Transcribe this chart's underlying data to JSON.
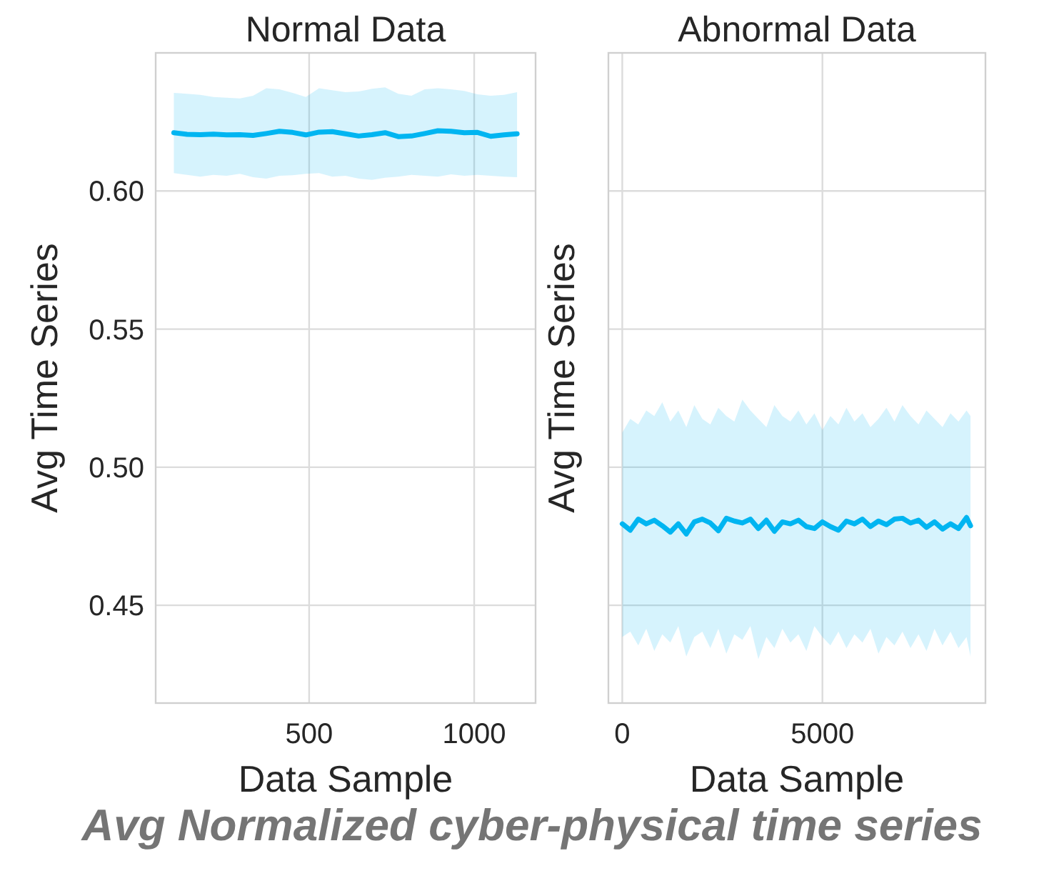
{
  "chart_data": [
    {
      "type": "line",
      "title": "Normal Data",
      "xlabel": "Data Sample",
      "ylabel": "Avg Time Series",
      "xlim": [
        35,
        1186
      ],
      "xticks": [
        500,
        1000
      ],
      "ylim": [
        0.4146,
        0.65
      ],
      "yticks": [
        0.45,
        {
          "value": 0.5,
          "label": "0.50"
        },
        0.55,
        {
          "value": 0.6,
          "label": "0.60"
        }
      ],
      "grid": true,
      "line_style": "solid",
      "annotations": [
        "Avg Normalized cyber-physical time series"
      ],
      "x": [
        90,
        130,
        170,
        210,
        250,
        290,
        330,
        370,
        410,
        450,
        490,
        530,
        570,
        610,
        650,
        690,
        730,
        770,
        810,
        850,
        890,
        930,
        970,
        1010,
        1050,
        1090,
        1130
      ],
      "series": [
        {
          "color": "#00b5f1",
          "values": [
            0.6211,
            0.6205,
            0.6204,
            0.6206,
            0.6203,
            0.6204,
            0.6201,
            0.6208,
            0.6216,
            0.6212,
            0.6203,
            0.6213,
            0.6215,
            0.6207,
            0.6199,
            0.6204,
            0.6211,
            0.6197,
            0.6199,
            0.6208,
            0.6218,
            0.6216,
            0.6211,
            0.6212,
            0.6198,
            0.6203,
            0.6207
          ],
          "lower": [
            0.6065,
            0.6058,
            0.6052,
            0.6058,
            0.6055,
            0.6062,
            0.605,
            0.6045,
            0.6055,
            0.6057,
            0.6062,
            0.6065,
            0.6052,
            0.6055,
            0.6045,
            0.604,
            0.6048,
            0.6052,
            0.6058,
            0.6055,
            0.6052,
            0.606,
            0.6055,
            0.6058,
            0.6055,
            0.6052,
            0.605
          ],
          "upper": [
            0.6355,
            0.6352,
            0.6348,
            0.634,
            0.6338,
            0.6335,
            0.6345,
            0.6372,
            0.6368,
            0.6355,
            0.634,
            0.6372,
            0.6365,
            0.6358,
            0.636,
            0.637,
            0.6375,
            0.6352,
            0.6345,
            0.6368,
            0.6372,
            0.6368,
            0.6362,
            0.635,
            0.6345,
            0.6348,
            0.6358
          ]
        }
      ]
    },
    {
      "type": "line",
      "title": "Abnormal Data",
      "xlabel": "Data Sample",
      "ylabel": "Avg Time Series",
      "xlim": [
        -346,
        9073
      ],
      "xticks": [
        0,
        5000
      ],
      "ylim": [
        0.4146,
        0.65
      ],
      "yticks": [
        0.45,
        0.5,
        0.55,
        0.6
      ],
      "tick_labels": "x",
      "grid": true,
      "line_style": "solid",
      "x": [
        0,
        200,
        400,
        600,
        800,
        1000,
        1200,
        1400,
        1600,
        1800,
        2000,
        2200,
        2400,
        2600,
        2800,
        3000,
        3200,
        3400,
        3600,
        3800,
        4000,
        4200,
        4400,
        4600,
        4800,
        5000,
        5200,
        5400,
        5600,
        5800,
        6000,
        6200,
        6400,
        6600,
        6800,
        7000,
        7200,
        7400,
        7600,
        7800,
        8000,
        8200,
        8400,
        8600,
        8700
      ],
      "series": [
        {
          "color": "#00b5f1",
          "values": [
            0.4795,
            0.4772,
            0.4812,
            0.4795,
            0.4808,
            0.4788,
            0.4765,
            0.4795,
            0.4758,
            0.4802,
            0.4812,
            0.4798,
            0.477,
            0.4815,
            0.4805,
            0.4798,
            0.4812,
            0.4778,
            0.4808,
            0.4768,
            0.4802,
            0.4795,
            0.4808,
            0.4785,
            0.4778,
            0.4802,
            0.4785,
            0.4772,
            0.4805,
            0.4795,
            0.4812,
            0.4785,
            0.4805,
            0.4792,
            0.4812,
            0.4815,
            0.4798,
            0.4808,
            0.4782,
            0.4802,
            0.4776,
            0.4795,
            0.4778,
            0.4818,
            0.4788
          ],
          "lower": [
            0.4385,
            0.4405,
            0.4355,
            0.4415,
            0.4335,
            0.4395,
            0.4365,
            0.4425,
            0.4315,
            0.4385,
            0.4405,
            0.4345,
            0.4415,
            0.4325,
            0.4395,
            0.4375,
            0.4425,
            0.4305,
            0.4385,
            0.4345,
            0.4415,
            0.4365,
            0.4395,
            0.4335,
            0.4425,
            0.4385,
            0.4355,
            0.4405,
            0.4345,
            0.4395,
            0.4365,
            0.4415,
            0.4325,
            0.4385,
            0.4355,
            0.4405,
            0.4345,
            0.4395,
            0.4335,
            0.4415,
            0.4355,
            0.4405,
            0.4345,
            0.4385,
            0.4315
          ],
          "upper": [
            0.5125,
            0.5175,
            0.5155,
            0.5205,
            0.5185,
            0.5235,
            0.5165,
            0.5205,
            0.5145,
            0.5225,
            0.5175,
            0.5155,
            0.5215,
            0.5185,
            0.5165,
            0.5245,
            0.5205,
            0.5175,
            0.5145,
            0.5225,
            0.5185,
            0.5165,
            0.5205,
            0.5155,
            0.5195,
            0.5135,
            0.5185,
            0.5155,
            0.5215,
            0.5165,
            0.5195,
            0.5145,
            0.5175,
            0.5215,
            0.5165,
            0.5225,
            0.5185,
            0.5155,
            0.5205,
            0.5175,
            0.5145,
            0.5195,
            0.5165,
            0.5205,
            0.5185
          ]
        }
      ]
    }
  ]
}
